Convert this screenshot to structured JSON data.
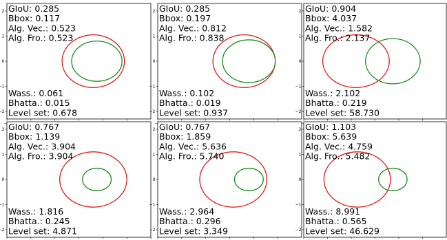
{
  "chart_data": [
    {
      "type": "ellipse-comparison",
      "metrics_top": [
        {
          "label": "GIoU",
          "value": "0.285"
        },
        {
          "label": "Bbox",
          "value": "0.117"
        },
        {
          "label": "Alg. Vec.",
          "value": "0.523"
        },
        {
          "label": "Alg. Fro.",
          "value": "0.523"
        }
      ],
      "metrics_bottom": [
        {
          "label": "Wass.",
          "value": "0.061"
        },
        {
          "label": "Bhatta.",
          "value": "0.015"
        },
        {
          "label": "Level set",
          "value": "0.678"
        }
      ],
      "ellipses": [
        {
          "color": "#e31a1c",
          "cx": 0.6,
          "cy": 0.0,
          "rx": 1.3,
          "ry": 1.05
        },
        {
          "color": "#1a8a1a",
          "cx": 0.75,
          "cy": 0.0,
          "rx": 1.05,
          "ry": 0.8
        }
      ],
      "xticks": [
        -3,
        -2,
        -1,
        0,
        1,
        2
      ],
      "yticks": [
        -2,
        -1,
        0,
        1,
        2
      ],
      "xlim": [
        -3,
        3
      ],
      "ylim": [
        -2.3,
        2.3
      ]
    },
    {
      "type": "ellipse-comparison",
      "metrics_top": [
        {
          "label": "GIoU",
          "value": "0.285"
        },
        {
          "label": "Bbox",
          "value": "0.197"
        },
        {
          "label": "Alg. Vec.",
          "value": "0.812"
        },
        {
          "label": "Alg. Fro.",
          "value": "0.838"
        }
      ],
      "metrics_bottom": [
        {
          "label": "Wass.",
          "value": "0.102"
        },
        {
          "label": "Bhatta.",
          "value": "0.019"
        },
        {
          "label": "Level set",
          "value": "0.937"
        }
      ],
      "ellipses": [
        {
          "color": "#e31a1c",
          "cx": 0.6,
          "cy": 0.0,
          "rx": 1.3,
          "ry": 1.05
        },
        {
          "color": "#1a8a1a",
          "cx": 0.8,
          "cy": 0.0,
          "rx": 1.1,
          "ry": 0.85
        }
      ],
      "xticks": [
        -3,
        -2,
        -1,
        0,
        1,
        2
      ],
      "yticks": [
        -2,
        -1,
        0,
        1,
        2
      ],
      "xlim": [
        -3,
        3
      ],
      "ylim": [
        -2.3,
        2.3
      ]
    },
    {
      "type": "ellipse-comparison",
      "metrics_top": [
        {
          "label": "GIoU",
          "value": "0.904"
        },
        {
          "label": "Bbox",
          "value": "4.037"
        },
        {
          "label": "Alg. Vec.",
          "value": "1.582"
        },
        {
          "label": "Alg. Fro.",
          "value": "2.137"
        }
      ],
      "metrics_bottom": [
        {
          "label": "Wass.",
          "value": "2.102"
        },
        {
          "label": "Bhatta.",
          "value": "0.219"
        },
        {
          "label": "Level set",
          "value": "58.730"
        }
      ],
      "ellipses": [
        {
          "color": "#e31a1c",
          "cx": -0.8,
          "cy": 0.0,
          "rx": 1.4,
          "ry": 1.05
        },
        {
          "color": "#1a8a1a",
          "cx": 0.75,
          "cy": 0.0,
          "rx": 1.15,
          "ry": 0.9
        }
      ],
      "xticks": [
        -3,
        -2,
        -1,
        0,
        1,
        2
      ],
      "yticks": [
        -2,
        -1,
        0,
        1,
        2
      ],
      "xlim": [
        -3,
        3
      ],
      "ylim": [
        -2.3,
        2.3
      ]
    },
    {
      "type": "ellipse-comparison",
      "metrics_top": [
        {
          "label": "GIoU",
          "value": "0.767"
        },
        {
          "label": "Bbox",
          "value": "1.139"
        },
        {
          "label": "Alg. Vec.",
          "value": "3.904"
        },
        {
          "label": "Alg. Fro.",
          "value": "3.904"
        }
      ],
      "metrics_bottom": [
        {
          "label": "Wass.",
          "value": "1.816"
        },
        {
          "label": "Bhatta.",
          "value": "0.245"
        },
        {
          "label": "Level set",
          "value": "4.871"
        }
      ],
      "ellipses": [
        {
          "color": "#e31a1c",
          "cx": 0.6,
          "cy": 0.0,
          "rx": 1.4,
          "ry": 1.1
        },
        {
          "color": "#1a8a1a",
          "cx": 0.75,
          "cy": 0.0,
          "rx": 0.6,
          "ry": 0.45
        }
      ],
      "xticks": [
        -3,
        -2,
        -1,
        0,
        1,
        2,
        3
      ],
      "yticks": [
        -2,
        -1,
        0,
        1,
        2
      ],
      "xlim": [
        -3,
        3
      ],
      "ylim": [
        -2.3,
        2.3
      ]
    },
    {
      "type": "ellipse-comparison",
      "metrics_top": [
        {
          "label": "GIoU",
          "value": "0.767"
        },
        {
          "label": "Bbox",
          "value": "1.859"
        },
        {
          "label": "Alg. Vec.",
          "value": "5.636"
        },
        {
          "label": "Alg. Fro.",
          "value": "5.740"
        }
      ],
      "metrics_bottom": [
        {
          "label": "Wass.",
          "value": "2.964"
        },
        {
          "label": "Bhatta.",
          "value": "0.296"
        },
        {
          "label": "Level set",
          "value": "3.349"
        }
      ],
      "ellipses": [
        {
          "color": "#e31a1c",
          "cx": 0.15,
          "cy": 0.0,
          "rx": 1.4,
          "ry": 1.1
        },
        {
          "color": "#1a8a1a",
          "cx": 0.8,
          "cy": 0.0,
          "rx": 0.6,
          "ry": 0.45
        }
      ],
      "xticks": [
        -3,
        -2,
        -1,
        0,
        1,
        2
      ],
      "yticks": [
        -2,
        -1,
        0,
        1,
        2
      ],
      "xlim": [
        -3,
        3
      ],
      "ylim": [
        -2.3,
        2.3
      ]
    },
    {
      "type": "ellipse-comparison",
      "metrics_top": [
        {
          "label": "GIoU",
          "value": "1.103"
        },
        {
          "label": "Bbox",
          "value": "5.639"
        },
        {
          "label": "Alg. Vec.",
          "value": "4.759"
        },
        {
          "label": "Alg. Fro.",
          "value": "5.482"
        }
      ],
      "metrics_bottom": [
        {
          "label": "Wass.",
          "value": "8.991"
        },
        {
          "label": "Bhatta.",
          "value": "0.565"
        },
        {
          "label": "Level set",
          "value": "46.629"
        }
      ],
      "ellipses": [
        {
          "color": "#e31a1c",
          "cx": -0.75,
          "cy": 0.0,
          "rx": 1.4,
          "ry": 1.1
        },
        {
          "color": "#1a8a1a",
          "cx": 0.75,
          "cy": 0.0,
          "rx": 0.6,
          "ry": 0.45
        }
      ],
      "xticks": [
        -3,
        -2,
        -1,
        0,
        1,
        2
      ],
      "yticks": [
        -2,
        -1,
        0,
        1,
        2
      ],
      "xlim": [
        -3,
        3
      ],
      "ylim": [
        -2.3,
        2.3
      ]
    }
  ]
}
